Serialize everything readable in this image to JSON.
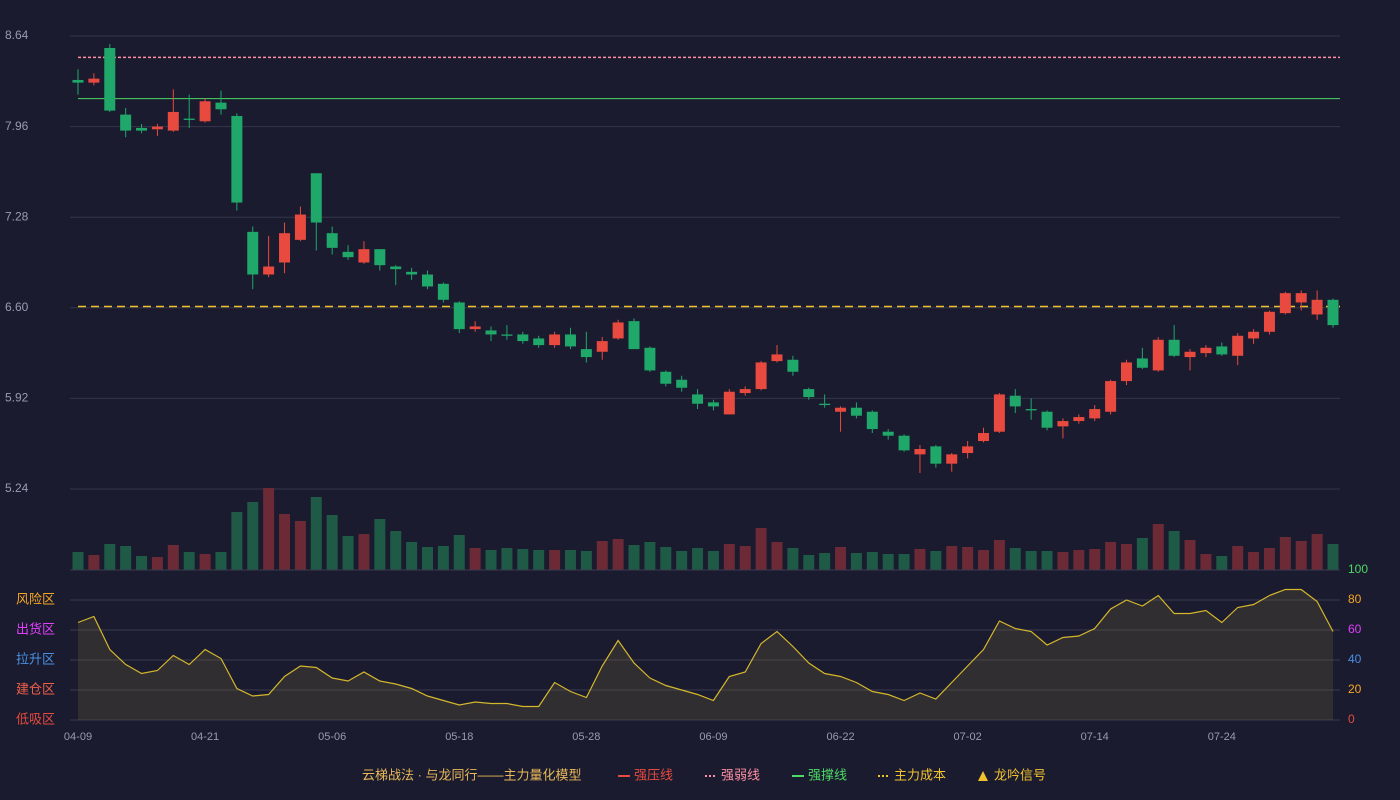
{
  "chart_data": {
    "type": "candlestick",
    "categories": [
      "04-09",
      null,
      null,
      null,
      null,
      null,
      null,
      null,
      "04-21",
      null,
      null,
      null,
      null,
      null,
      null,
      null,
      "05-06",
      null,
      null,
      null,
      null,
      null,
      null,
      null,
      "05-18",
      null,
      null,
      null,
      null,
      null,
      null,
      null,
      "05-28",
      null,
      null,
      null,
      null,
      null,
      null,
      null,
      "06-09",
      null,
      null,
      null,
      null,
      null,
      null,
      null,
      "06-22",
      null,
      null,
      null,
      null,
      null,
      null,
      null,
      "07-02",
      null,
      null,
      null,
      null,
      null,
      null,
      null,
      "07-14",
      null,
      null,
      null,
      null,
      null,
      null,
      null,
      "07-24",
      null,
      null,
      null,
      null,
      null,
      null,
      null
    ],
    "open": [
      8.31,
      8.29,
      8.55,
      8.05,
      7.95,
      7.94,
      7.93,
      8.02,
      8.0,
      8.14,
      8.04,
      7.17,
      6.85,
      6.94,
      7.11,
      7.61,
      7.16,
      7.02,
      6.94,
      7.04,
      6.91,
      6.87,
      6.85,
      6.78,
      6.64,
      6.44,
      6.43,
      6.4,
      6.4,
      6.37,
      6.32,
      6.4,
      6.29,
      6.27,
      6.37,
      6.5,
      6.3,
      6.12,
      6.06,
      5.95,
      5.89,
      5.8,
      5.96,
      5.99,
      6.2,
      6.21,
      5.99,
      5.88,
      5.82,
      5.85,
      5.82,
      5.67,
      5.64,
      5.5,
      5.56,
      5.43,
      5.51,
      5.6,
      5.67,
      5.94,
      5.84,
      5.82,
      5.71,
      5.75,
      5.77,
      5.82,
      6.05,
      6.22,
      6.13,
      6.36,
      6.23,
      6.26,
      6.31,
      6.24,
      6.37,
      6.42,
      6.56,
      6.64,
      6.55,
      6.66
    ],
    "close": [
      8.29,
      8.32,
      8.08,
      7.93,
      7.93,
      7.96,
      8.07,
      8.01,
      8.15,
      8.09,
      7.39,
      6.85,
      6.91,
      7.16,
      7.3,
      7.24,
      7.05,
      6.98,
      7.04,
      6.92,
      6.89,
      6.85,
      6.76,
      6.66,
      6.44,
      6.46,
      6.4,
      6.39,
      6.35,
      6.32,
      6.4,
      6.31,
      6.23,
      6.35,
      6.49,
      6.29,
      6.13,
      6.03,
      6.0,
      5.88,
      5.86,
      5.97,
      5.99,
      6.19,
      6.25,
      6.12,
      5.93,
      5.87,
      5.85,
      5.79,
      5.69,
      5.64,
      5.53,
      5.54,
      5.43,
      5.5,
      5.56,
      5.66,
      5.95,
      5.86,
      5.83,
      5.7,
      5.75,
      5.78,
      5.84,
      6.05,
      6.19,
      6.15,
      6.36,
      6.24,
      6.27,
      6.3,
      6.25,
      6.39,
      6.42,
      6.57,
      6.71,
      6.71,
      6.66,
      6.47
    ],
    "high": [
      8.39,
      8.36,
      8.58,
      8.1,
      7.98,
      7.98,
      8.24,
      8.2,
      8.17,
      8.23,
      8.06,
      7.21,
      7.14,
      7.24,
      7.36,
      7.61,
      7.21,
      7.07,
      7.1,
      7.04,
      6.92,
      6.9,
      6.88,
      6.79,
      6.65,
      6.5,
      6.46,
      6.47,
      6.42,
      6.39,
      6.42,
      6.45,
      6.42,
      6.38,
      6.51,
      6.52,
      6.31,
      6.13,
      6.09,
      5.99,
      5.91,
      5.99,
      6.01,
      6.2,
      6.32,
      6.24,
      6.0,
      5.95,
      5.86,
      5.89,
      5.83,
      5.69,
      5.65,
      5.57,
      5.57,
      5.51,
      5.6,
      5.7,
      5.96,
      5.99,
      5.92,
      5.83,
      5.77,
      5.8,
      5.87,
      6.06,
      6.21,
      6.3,
      6.38,
      6.47,
      6.29,
      6.32,
      6.34,
      6.41,
      6.44,
      6.58,
      6.72,
      6.73,
      6.73,
      6.67
    ],
    "low": [
      8.2,
      8.27,
      8.07,
      7.88,
      7.91,
      7.89,
      7.92,
      7.95,
      7.99,
      8.05,
      7.33,
      6.74,
      6.83,
      6.86,
      7.1,
      7.03,
      7.0,
      6.96,
      6.93,
      6.88,
      6.77,
      6.81,
      6.74,
      6.64,
      6.41,
      6.42,
      6.35,
      6.36,
      6.33,
      6.3,
      6.3,
      6.29,
      6.19,
      6.21,
      6.36,
      6.29,
      6.12,
      6.01,
      5.97,
      5.84,
      5.83,
      5.8,
      5.94,
      5.98,
      6.19,
      6.09,
      5.91,
      5.85,
      5.67,
      5.77,
      5.66,
      5.61,
      5.52,
      5.36,
      5.4,
      5.37,
      5.47,
      5.59,
      5.66,
      5.81,
      5.76,
      5.68,
      5.62,
      5.73,
      5.75,
      5.8,
      6.02,
      6.14,
      6.12,
      6.23,
      6.13,
      6.23,
      6.24,
      6.17,
      6.33,
      6.4,
      6.55,
      6.58,
      6.51,
      6.45
    ],
    "volume": [
      18,
      15,
      26,
      24,
      14,
      13,
      25,
      18,
      16,
      18,
      58,
      68,
      82,
      56,
      49,
      73,
      55,
      34,
      36,
      51,
      39,
      28,
      23,
      24,
      35,
      22,
      20,
      22,
      21,
      20,
      20,
      20,
      19,
      29,
      31,
      25,
      28,
      23,
      19,
      22,
      19,
      26,
      24,
      42,
      28,
      22,
      15,
      17,
      23,
      17,
      18,
      16,
      16,
      21,
      19,
      24,
      23,
      20,
      30,
      22,
      19,
      19,
      18,
      20,
      21,
      28,
      26,
      32,
      46,
      39,
      30,
      16,
      14,
      24,
      18,
      22,
      33,
      29,
      36,
      26
    ],
    "up_color": "#e84a3f",
    "down_color": "#1fa86a",
    "volume_up_color": "#6b2a35",
    "volume_down_color": "#1e5a45",
    "ylim": [
      5.24,
      8.64
    ],
    "yticks": [
      5.24,
      5.92,
      {
        "value": 6.6,
        "label": "6.60"
      },
      7.28,
      7.96,
      8.64
    ],
    "grid": true,
    "lines": [
      {
        "name": "强压线",
        "color": "#e84a3f",
        "dash": false
      },
      {
        "name": "强弱线",
        "color": "#ff8fa3",
        "dash": true,
        "value": 8.48
      },
      {
        "name": "强撑线",
        "color": "#4cd964",
        "dash": false,
        "value": 8.17
      },
      {
        "name": "主力成本",
        "color": "#f2c12e",
        "dash": true,
        "value": 6.61
      },
      {
        "name": "龙吟信号",
        "color": "#f2c12e",
        "marker": "triangle"
      }
    ],
    "legend_title": "云梯战法 · 与龙同行——主力量化模型",
    "oscillator": {
      "color": "#d4b72c",
      "values": [
        65,
        69,
        47,
        37,
        31,
        33,
        43,
        37,
        47,
        41,
        21,
        16,
        17,
        29,
        36,
        35,
        28,
        26,
        32,
        26,
        24,
        21,
        16,
        13,
        10,
        12,
        11,
        11,
        9,
        9,
        25,
        19,
        15,
        36,
        53,
        38,
        28,
        23,
        20,
        17,
        13,
        29,
        32,
        51,
        59,
        49,
        38,
        31,
        29,
        25,
        19,
        17,
        13,
        18,
        14,
        25,
        36,
        47,
        66,
        61,
        59,
        50,
        55,
        56,
        61,
        74,
        80,
        76,
        83,
        71,
        71,
        73,
        65,
        75,
        77,
        83,
        87,
        87,
        79,
        59
      ],
      "ylim": [
        0,
        100
      ],
      "yticks": [
        0,
        20,
        40,
        60,
        80,
        100
      ],
      "ytick_colors": [
        "#e84a3f",
        "#f5a623",
        "#4a90e2",
        "#e040fb",
        "#f5a623",
        "#4cd964"
      ],
      "zones": [
        {
          "label": "低吸区",
          "value": 0,
          "color": "#e84a3f"
        },
        {
          "label": "建仓区",
          "value": 20,
          "color": "#f0604a"
        },
        {
          "label": "拉升区",
          "value": 40,
          "color": "#4a90e2"
        },
        {
          "label": "出货区",
          "value": 60,
          "color": "#e040fb"
        },
        {
          "label": "风险区",
          "value": 80,
          "color": "#f5a623"
        }
      ]
    }
  }
}
